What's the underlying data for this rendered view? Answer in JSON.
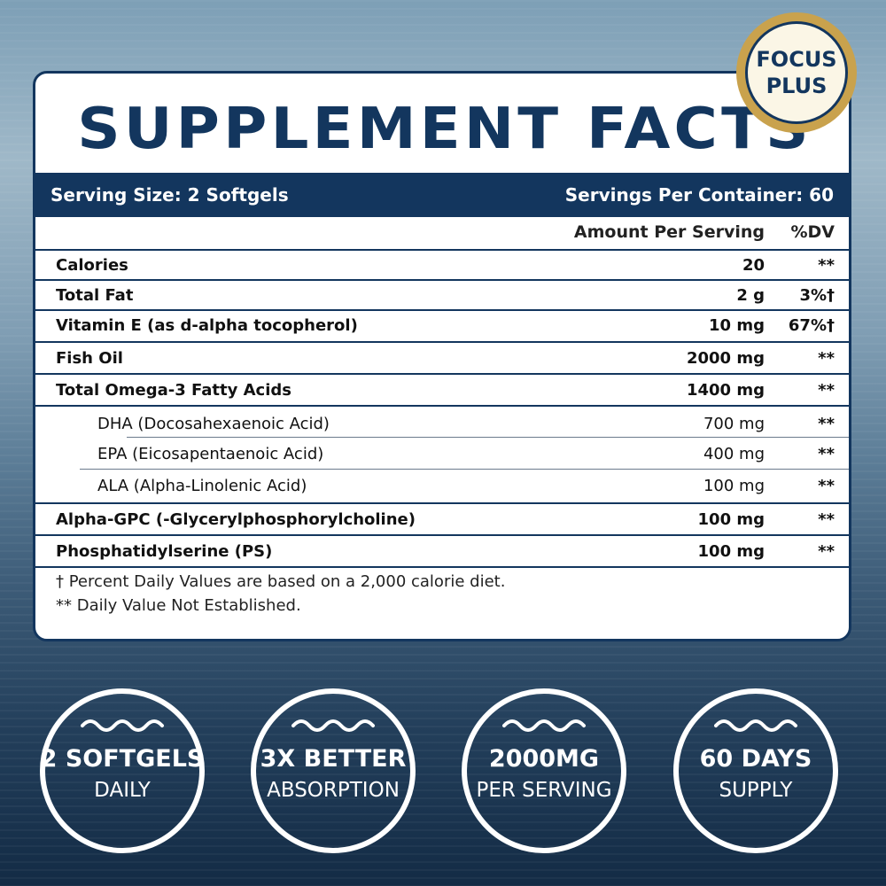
{
  "badge": {
    "line1": "FOCUS",
    "line2": "PLUS"
  },
  "title": "SUPPLEMENT FACTS",
  "serving": {
    "size": "Serving Size: 2 Softgels",
    "per_container": "Servings Per Container: 60"
  },
  "columns": {
    "amount": "Amount Per Serving",
    "dv": "%DV"
  },
  "rows": [
    {
      "name": "Calories",
      "amount": "20",
      "dv": "**"
    },
    {
      "name": "Total Fat",
      "amount": "2 g",
      "dv": "3%†"
    },
    {
      "name": "Vitamin E (as d-alpha tocopherol)",
      "amount": "10 mg",
      "dv": "67%†"
    },
    {
      "name": "Fish Oil",
      "amount": "2000 mg",
      "dv": "**"
    },
    {
      "name": "Total Omega-3 Fatty Acids",
      "amount": "1400 mg",
      "dv": "**"
    },
    {
      "name": "DHA (Docosahexaenoic Acid)",
      "amount": "700 mg",
      "dv": "**"
    },
    {
      "name": "EPA (Eicosapentaenoic Acid)",
      "amount": "400 mg",
      "dv": "**"
    },
    {
      "name": "ALA (Alpha-Linolenic Acid)",
      "amount": "100 mg",
      "dv": "**"
    },
    {
      "name": "Alpha-GPC (-Glycerylphosphorylcholine)",
      "amount": "100 mg",
      "dv": "**"
    },
    {
      "name": "Phosphatidylserine (PS)",
      "amount": "100 mg",
      "dv": "**"
    }
  ],
  "footnotes": {
    "percent": "† Percent Daily Values are based on a 2,000 calorie diet.",
    "not_established": "** Daily Value Not Established."
  },
  "features": [
    {
      "big": "2 SOFTGELS",
      "small": "DAILY"
    },
    {
      "big": "3X BETTER",
      "small": "ABSORPTION"
    },
    {
      "big": "2000MG",
      "small": "PER SERVING"
    },
    {
      "big": "60 DAYS",
      "small": "SUPPLY"
    }
  ],
  "colors": {
    "navy": "#13365e",
    "gold": "#c9a24d"
  }
}
